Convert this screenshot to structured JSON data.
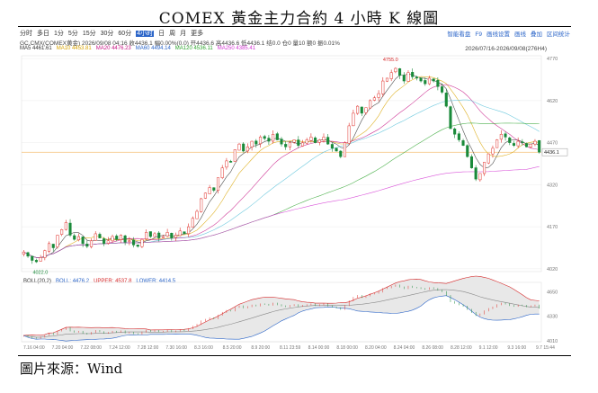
{
  "title": "COMEX 黃金主力合約 4 小時 K 線圖",
  "caption": "圖片來源：Wind",
  "toolbar": {
    "periods": [
      "分时",
      "多日",
      "1分",
      "5分",
      "15分",
      "30分",
      "60分",
      "4小时",
      "日",
      "周",
      "月",
      "更多"
    ],
    "selected": "4小时",
    "right_items": [
      "智能看盘",
      "F9",
      "画线设置",
      "画线",
      "叠加",
      "区间统计"
    ]
  },
  "info": {
    "line": "GC.CMX(COMEX黄金)  2026/09/08 04:16  收4436.1  幅0.00%(0.0)  开4436.6  高4436.6  低4436.1  结0.0  仓0  量10  额0  振0.01%",
    "range": "2026/07/16-2026/09/08(276H4)"
  },
  "ma_legend": [
    {
      "label": "MA5 4461.61",
      "color": "#333333"
    },
    {
      "label": "MA10 4453.81",
      "color": "#d9a400"
    },
    {
      "label": "MA20 4476.23",
      "color": "#c71585"
    },
    {
      "label": "MA60 4494.14",
      "color": "#2a64c8"
    },
    {
      "label": "MA120 4536.11",
      "color": "#2fa52f"
    },
    {
      "label": "MA250 4385.41",
      "color": "#d43ad4"
    }
  ],
  "boll_legend": [
    {
      "label": "BOLL(20,2)",
      "color": "#333333"
    },
    {
      "label": "BOLL: 4476.2",
      "color": "#2a64c8"
    },
    {
      "label": "UPPER: 4537.8",
      "color": "#d62728"
    },
    {
      "label": "LOWER: 4414.5",
      "color": "#2a64c8"
    }
  ],
  "chart_data": {
    "type": "candlestick",
    "y_ticks": [
      4020,
      4170,
      4320,
      4470,
      4620,
      4770
    ],
    "ylim": [
      4010,
      4780
    ],
    "last_price": "4436.1",
    "high_label": "4755.0",
    "low_label": "4022.0",
    "x_ticks": [
      "7.16 04:00",
      "7.20 04:00",
      "7.22 08:00",
      "7.24 12:00",
      "7.28 12:00",
      "7.30 16:00",
      "8.3 16:00",
      "8.5 20:00",
      "8.9 20:00",
      "8.11 23:59",
      "8.14 00:00",
      "8.18 00:00",
      "8.20 04:00",
      "8.24 04:00",
      "8.26 08:00",
      "8.28 12:00",
      "9.1 12:00",
      "9.3 16:00",
      "9.7 15:44"
    ],
    "close": [
      4080,
      4065,
      4050,
      4045,
      4060,
      4085,
      4110,
      4095,
      4140,
      4160,
      4185,
      4140,
      4125,
      4135,
      4110,
      4100,
      4120,
      4145,
      4130,
      4110,
      4120,
      4135,
      4125,
      4140,
      4115,
      4120,
      4105,
      4100,
      4125,
      4150,
      4135,
      4145,
      4130,
      4135,
      4150,
      4130,
      4140,
      4155,
      4145,
      4170,
      4200,
      4225,
      4270,
      4290,
      4310,
      4300,
      4345,
      4380,
      4405,
      4400,
      4445,
      4465,
      4440,
      4455,
      4475,
      4465,
      4490,
      4485,
      4475,
      4500,
      4480,
      4465,
      4455,
      4470,
      4480,
      4460,
      4470,
      4480,
      4490,
      4470,
      4480,
      4490,
      4465,
      4450,
      4440,
      4420,
      4470,
      4530,
      4575,
      4600,
      4575,
      4595,
      4620,
      4630,
      4645,
      4690,
      4700,
      4720,
      4735,
      4710,
      4690,
      4720,
      4705,
      4700,
      4690,
      4680,
      4700,
      4690,
      4670,
      4650,
      4600,
      4520,
      4500,
      4480,
      4460,
      4420,
      4380,
      4340,
      4360,
      4400,
      4430,
      4450,
      4480,
      4500,
      4490,
      4470,
      4460,
      4475,
      4470,
      4455,
      4465,
      4475,
      4436
    ],
    "boll_ylim": [
      4000,
      4700
    ],
    "boll_ticks": [
      4010,
      4330,
      4650
    ],
    "boll_upper": 4537.8,
    "boll_mid": 4476.2,
    "boll_lower": 4414.5
  }
}
